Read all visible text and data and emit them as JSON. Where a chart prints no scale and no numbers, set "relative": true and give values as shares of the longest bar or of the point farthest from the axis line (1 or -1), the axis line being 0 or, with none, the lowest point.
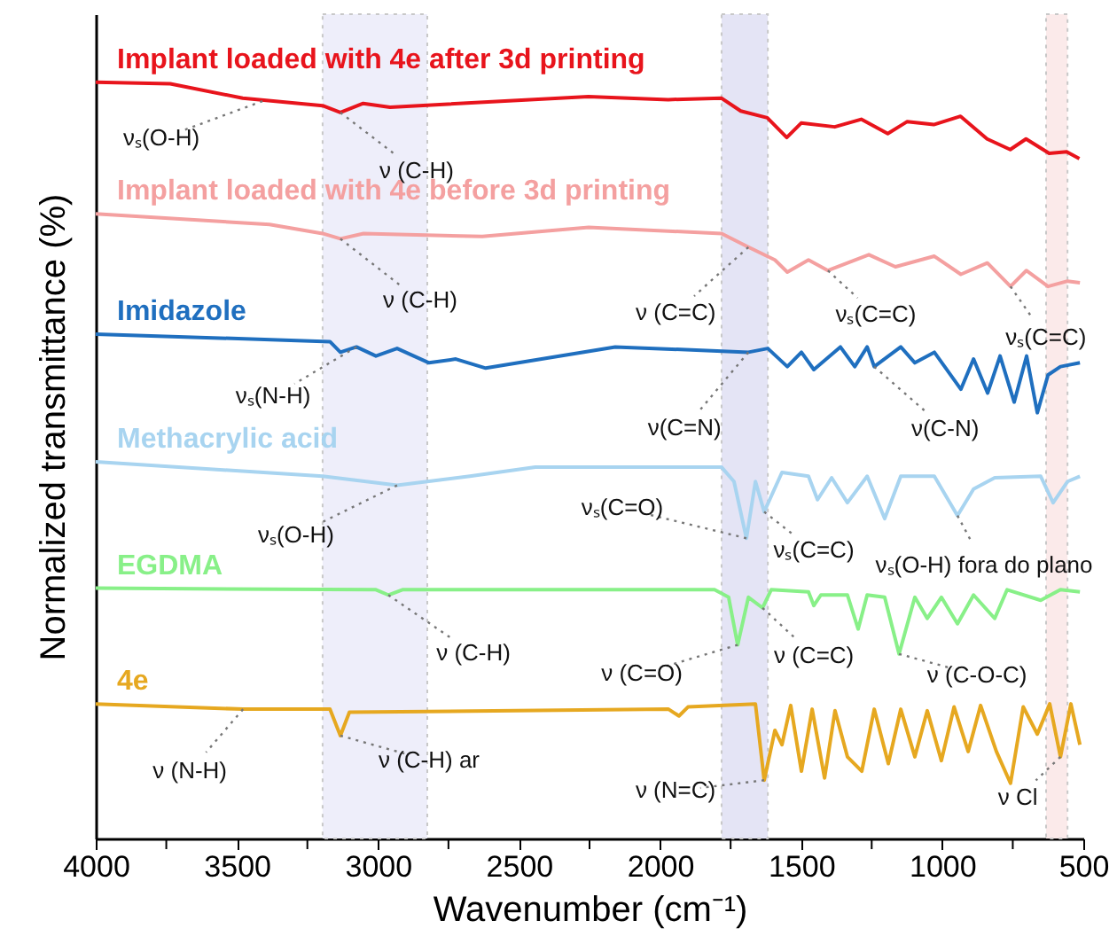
{
  "chart_data": {
    "type": "line",
    "relative": true,
    "xlabel": "Wavenumber (cm⁻¹)",
    "ylabel": "Normalized transmittance (%)",
    "xlim": [
      4000,
      500
    ],
    "xticks": [
      4000,
      {
        "value": 3750,
        "label": null
      },
      3500,
      {
        "value": 3250,
        "label": null
      },
      3000,
      {
        "value": 2750,
        "label": null
      },
      2500,
      {
        "value": 2250,
        "label": null
      },
      2000,
      {
        "value": 1750,
        "label": null
      },
      1500,
      {
        "value": 1250,
        "label": null
      },
      1000,
      {
        "value": 750,
        "label": null
      },
      500
    ],
    "grid": false,
    "series": [
      {
        "name": "Implant loaded with 4e after 3d printing",
        "color": "#e8141c",
        "x": [
          4000,
          3736,
          3479,
          3196,
          3133,
          3052,
          2957,
          2254,
          1971,
          1783,
          1714,
          1620,
          1551,
          1500,
          1381,
          1287,
          1193,
          1124,
          1030,
          935,
          841,
          759,
          703,
          621,
          559,
          514
        ],
        "values": [
          1.0,
          0.998,
          0.979,
          0.969,
          0.96,
          0.972,
          0.967,
          0.981,
          0.977,
          0.979,
          0.962,
          0.953,
          0.927,
          0.946,
          0.941,
          0.951,
          0.932,
          0.948,
          0.944,
          0.955,
          0.925,
          0.911,
          0.925,
          0.906,
          0.908,
          0.899
        ]
      },
      {
        "name": "Implant loaded with 4e before 3d printing",
        "color": "#f4a0a0",
        "x": [
          4000,
          3384,
          3196,
          3133,
          3051,
          2630,
          2253,
          1782,
          1687,
          1593,
          1549,
          1474,
          1405,
          1260,
          1166,
          1028,
          934,
          840,
          758,
          702,
          625,
          556,
          512
        ],
        "values": [
          0.826,
          0.812,
          0.8,
          0.793,
          0.8,
          0.796,
          0.808,
          0.8,
          0.782,
          0.765,
          0.749,
          0.765,
          0.751,
          0.772,
          0.756,
          0.77,
          0.746,
          0.761,
          0.73,
          0.751,
          0.73,
          0.737,
          0.735
        ]
      },
      {
        "name": "Imidazole",
        "color": "#1f6fbf",
        "x": [
          4000,
          3170,
          3133,
          3076,
          3007,
          2932,
          2819,
          2724,
          2618,
          2159,
          1687,
          1618,
          1549,
          1499,
          1455,
          1361,
          1310,
          1266,
          1241,
          1147,
          1097,
          1028,
          934,
          889,
          839,
          795,
          745,
          701,
          663,
          625,
          581,
          512
        ],
        "values": [
          0.667,
          0.657,
          0.643,
          0.65,
          0.638,
          0.648,
          0.629,
          0.634,
          0.622,
          0.65,
          0.643,
          0.648,
          0.624,
          0.643,
          0.62,
          0.65,
          0.624,
          0.65,
          0.624,
          0.65,
          0.629,
          0.643,
          0.594,
          0.634,
          0.589,
          0.638,
          0.577,
          0.638,
          0.563,
          0.613,
          0.624,
          0.629
        ]
      },
      {
        "name": "Methacrylic acid",
        "color": "#a8d4f0",
        "x": [
          4000,
          3196,
          2932,
          2674,
          2442,
          1782,
          1738,
          1694,
          1662,
          1631,
          1568,
          1474,
          1442,
          1392,
          1336,
          1266,
          1204,
          1147,
          1028,
          946,
          889,
          814,
          651,
          607,
          556,
          512
        ],
        "values": [
          0.498,
          0.479,
          0.467,
          0.479,
          0.491,
          0.491,
          0.472,
          0.397,
          0.472,
          0.432,
          0.484,
          0.479,
          0.448,
          0.477,
          0.444,
          0.479,
          0.423,
          0.479,
          0.479,
          0.427,
          0.462,
          0.477,
          0.479,
          0.444,
          0.472,
          0.479
        ]
      },
      {
        "name": "EGDMA",
        "color": "#88f088",
        "x": [
          4000,
          3007,
          2963,
          2913,
          1807,
          1757,
          1725,
          1687,
          1637,
          1606,
          1474,
          1455,
          1430,
          1336,
          1298,
          1266,
          1204,
          1153,
          1097,
          1053,
          1003,
          946,
          889,
          814,
          770,
          651,
          581,
          512
        ],
        "values": [
          0.331,
          0.329,
          0.322,
          0.329,
          0.329,
          0.319,
          0.256,
          0.319,
          0.305,
          0.329,
          0.326,
          0.308,
          0.322,
          0.322,
          0.277,
          0.322,
          0.319,
          0.244,
          0.319,
          0.291,
          0.319,
          0.284,
          0.322,
          0.291,
          0.329,
          0.315,
          0.329,
          0.326
        ]
      },
      {
        "name": "4e",
        "color": "#e6a820",
        "x": [
          4000,
          3478,
          3170,
          3133,
          3101,
          1970,
          1933,
          1901,
          1662,
          1631,
          1593,
          1568,
          1537,
          1499,
          1461,
          1417,
          1380,
          1336,
          1285,
          1241,
          1191,
          1147,
          1097,
          1053,
          1003,
          958,
          908,
          864,
          808,
          758,
          713,
          663,
          619,
          581,
          544,
          512
        ],
        "values": [
          0.178,
          0.171,
          0.171,
          0.136,
          0.167,
          0.171,
          0.162,
          0.174,
          0.178,
          0.077,
          0.143,
          0.124,
          0.176,
          0.089,
          0.171,
          0.08,
          0.169,
          0.108,
          0.089,
          0.171,
          0.099,
          0.171,
          0.108,
          0.169,
          0.103,
          0.174,
          0.115,
          0.176,
          0.115,
          0.073,
          0.174,
          0.138,
          0.178,
          0.108,
          0.178,
          0.124
        ]
      }
    ],
    "bands": [
      {
        "axis": "x",
        "from": 3196,
        "to": 2825,
        "color": "#eeeefa"
      },
      {
        "axis": "x",
        "from": 1782,
        "to": 1618,
        "color": "#e4e4f5"
      },
      {
        "axis": "x",
        "from": 632,
        "to": 556,
        "color": "#fbeaea"
      }
    ],
    "annotations": [
      {
        "text": "νₛ(O-H)",
        "x": 3409,
        "y": 0.975
      },
      {
        "text": "ν (C-H)",
        "x": 3133,
        "y": 0.96
      },
      {
        "text": "ν (C-H)",
        "x": 3133,
        "y": 0.793
      },
      {
        "text": "ν (C=C)",
        "x": 1687,
        "y": 0.782
      },
      {
        "text": "νₛ(C=C)",
        "x": 1405,
        "y": 0.751
      },
      {
        "text": "νₛ(C=C)",
        "x": 758,
        "y": 0.73
      },
      {
        "text": "νₛ(N-H)",
        "x": 3076,
        "y": 0.65
      },
      {
        "text": "ν(C=N)",
        "x": 1687,
        "y": 0.643
      },
      {
        "text": "ν(C-N)",
        "x": 1241,
        "y": 0.624
      },
      {
        "text": "νₛ(O-H)",
        "x": 2932,
        "y": 0.467
      },
      {
        "text": "νₛ(C=O)",
        "x": 1694,
        "y": 0.397
      },
      {
        "text": "νₛ(C=C)",
        "x": 1631,
        "y": 0.432
      },
      {
        "text": "νₛ(O-H) fora do plano",
        "x": 946,
        "y": 0.427
      },
      {
        "text": "ν (C-H)",
        "x": 2963,
        "y": 0.322
      },
      {
        "text": "ν (C=O)",
        "x": 1725,
        "y": 0.256
      },
      {
        "text": "ν (C=C)",
        "x": 1637,
        "y": 0.305
      },
      {
        "text": "ν (C-O-C)",
        "x": 1153,
        "y": 0.244
      },
      {
        "text": "ν (N-H)",
        "x": 3478,
        "y": 0.171
      },
      {
        "text": "ν (C-H) ar",
        "x": 3133,
        "y": 0.136
      },
      {
        "text": "ν (N=C)",
        "x": 1631,
        "y": 0.077
      },
      {
        "text": "ν Cl",
        "x": 581,
        "y": 0.108
      }
    ]
  }
}
